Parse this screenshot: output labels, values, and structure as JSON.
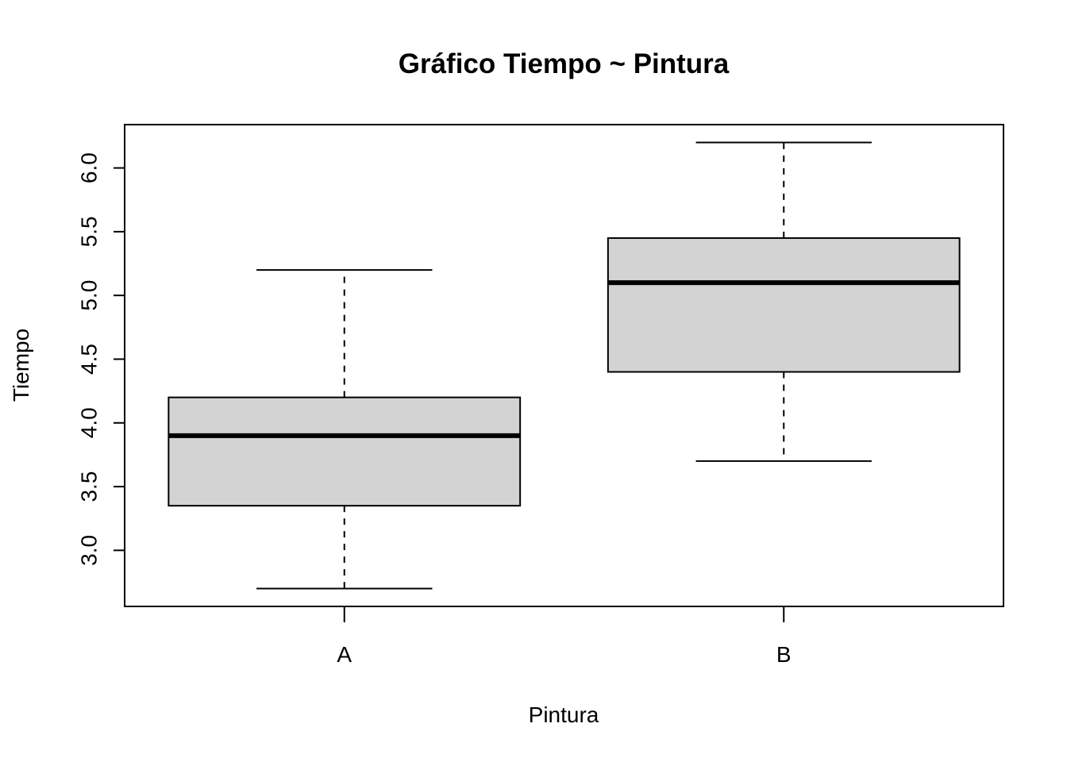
{
  "chart_data": {
    "type": "boxplot",
    "title": "Gráfico Tiempo ~ Pintura",
    "xlabel": "Pintura",
    "ylabel": "Tiempo",
    "categories": [
      "A",
      "B"
    ],
    "boxes": [
      {
        "category": "A",
        "whisker_low": 2.7,
        "q1": 3.35,
        "median": 3.9,
        "q3": 4.2,
        "whisker_high": 5.2
      },
      {
        "category": "B",
        "whisker_low": 3.7,
        "q1": 4.4,
        "median": 5.1,
        "q3": 5.45,
        "whisker_high": 6.2
      }
    ],
    "ylim": [
      2.56,
      6.34
    ],
    "yticks": [
      3.0,
      3.5,
      4.0,
      4.5,
      5.0,
      5.5,
      6.0
    ],
    "ytick_labels": [
      "3.0",
      "3.5",
      "4.0",
      "4.5",
      "5.0",
      "5.5",
      "6.0"
    ],
    "grid": false,
    "box_fill": "#d3d3d3",
    "line_color": "#000000"
  }
}
